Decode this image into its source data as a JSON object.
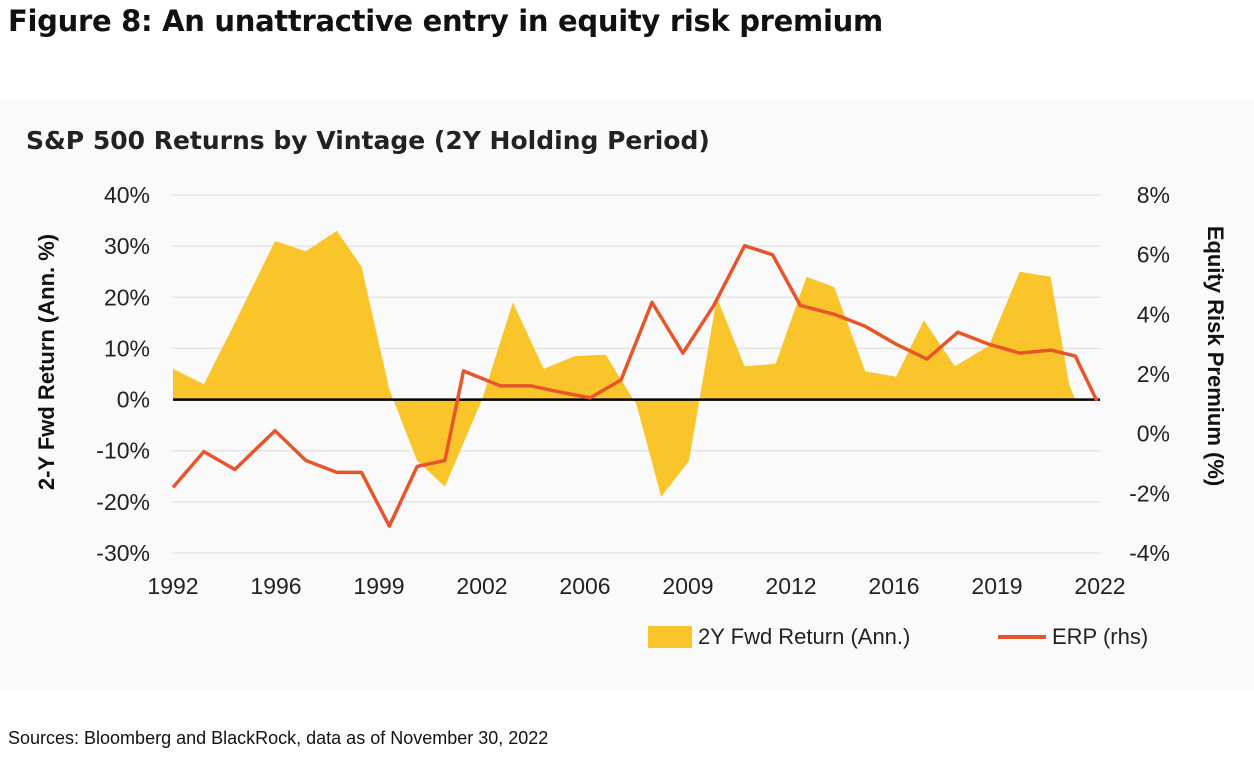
{
  "figure_title": "Figure 8: An unattractive entry in equity risk premium",
  "source_note": "Sources: Bloomberg and BlackRock, data as of November 30, 2022",
  "colors": {
    "area": "#f9c52b",
    "line": "#e8552a",
    "grid": "#dcdcdc",
    "zero": "#000000"
  },
  "chart_data": {
    "type": "area+line",
    "title": "S&P 500 Returns by Vintage (2Y Holding Period)",
    "ylabel_left": "2-Y Fwd Return (Ann. %)",
    "ylabel_right": "Equity Risk Premium (%)",
    "x_ticks": [
      "1992",
      "1996",
      "1999",
      "2002",
      "2006",
      "2009",
      "2012",
      "2016",
      "2019",
      "2022"
    ],
    "y_left_ticks": [
      "40%",
      "30%",
      "20%",
      "10%",
      "0%",
      "-10%",
      "-20%",
      "-30%"
    ],
    "y_right_ticks": [
      "8%",
      "6%",
      "4%",
      "2%",
      "0%",
      "-2%",
      "-4%"
    ],
    "ylim_left": [
      -30,
      40
    ],
    "ylim_right": [
      -4,
      8
    ],
    "xlim": [
      1992,
      2022
    ],
    "legend": [
      "2Y Fwd Return (Ann.)",
      "ERP (rhs)"
    ],
    "series": [
      {
        "name": "2Y Fwd Return (Ann.)",
        "axis": "left",
        "kind": "area",
        "x": [
          1992,
          1993,
          1994,
          1995.3,
          1996.3,
          1997.3,
          1998.1,
          1999,
          1999.9,
          2000.8,
          2002,
          2003,
          2004,
          2005,
          2006,
          2007,
          2007.8,
          2008.7,
          2009.6,
          2010.5,
          2011.5,
          2012.5,
          2013.4,
          2014.4,
          2015.4,
          2016.3,
          2017.3,
          2018.4,
          2019.4,
          2020.4,
          2021,
          2021.2
        ],
        "values": [
          6,
          3,
          15,
          31,
          29,
          33,
          26,
          2,
          -12,
          -17,
          0,
          19,
          6,
          8.5,
          8.8,
          -1,
          -19,
          -12,
          20,
          6.5,
          7,
          24,
          22,
          5.5,
          4.5,
          15.5,
          6.5,
          10.5,
          25,
          24,
          3,
          0
        ]
      },
      {
        "name": "ERP (rhs)",
        "axis": "right",
        "kind": "line",
        "x": [
          1992,
          1993,
          1994,
          1995.3,
          1996.3,
          1997.3,
          1998.1,
          1999,
          1999.9,
          2000.8,
          2001.4,
          2002.6,
          2003.6,
          2004.5,
          2005.5,
          2006.5,
          2007.5,
          2008.5,
          2009.5,
          2010.5,
          2011.4,
          2012.3,
          2013.4,
          2014.4,
          2015.4,
          2016.4,
          2017.4,
          2018.4,
          2019.4,
          2020.4,
          2021.2,
          2021.9
        ],
        "values": [
          -1.8,
          -0.6,
          -1.2,
          0.1,
          -0.9,
          -1.3,
          -1.3,
          -3.1,
          -1.1,
          -0.9,
          2.1,
          1.6,
          1.6,
          1.4,
          1.2,
          1.8,
          4.4,
          2.7,
          4.3,
          6.3,
          6.0,
          4.3,
          4.0,
          3.6,
          3.0,
          2.5,
          3.4,
          3.0,
          2.7,
          2.8,
          2.6,
          1.1
        ]
      }
    ]
  }
}
